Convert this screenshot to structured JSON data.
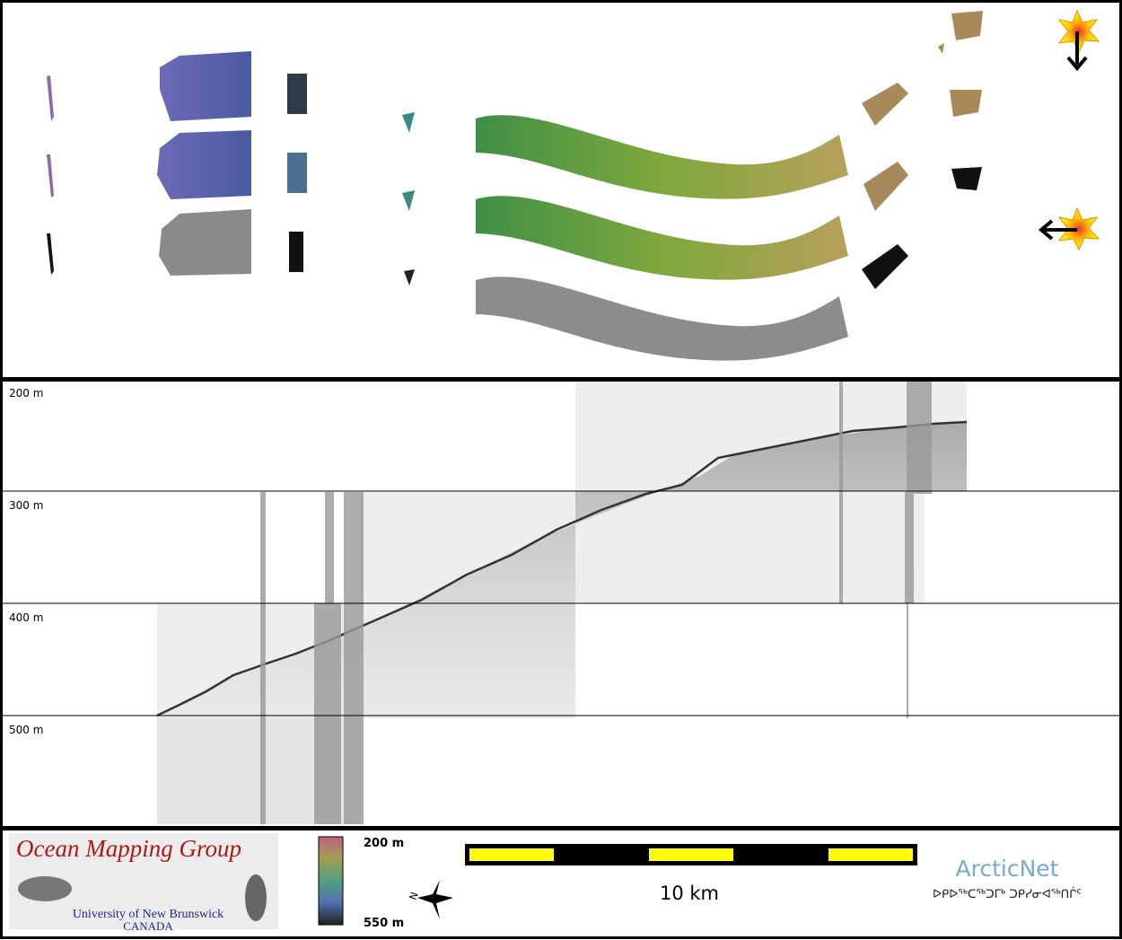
{
  "profile": {
    "depth_labels": [
      "200 m",
      "300 m",
      "400 m",
      "500 m"
    ]
  },
  "footer": {
    "logo": {
      "title": "Ocean Mapping Group",
      "university": "University of New Brunswick",
      "country": "CANADA"
    },
    "color_scale": {
      "top": "200 m",
      "bottom": "550 m"
    },
    "compass": "N",
    "scale_bar": "10 km",
    "partner": {
      "name": "ArcticNet",
      "syllabics": "ᐅᑭᐅᖅᑕᖅᑐᒥᒃ ᑐᑭᓯᓂᐊᖅᑎᒌᑦ"
    }
  }
}
